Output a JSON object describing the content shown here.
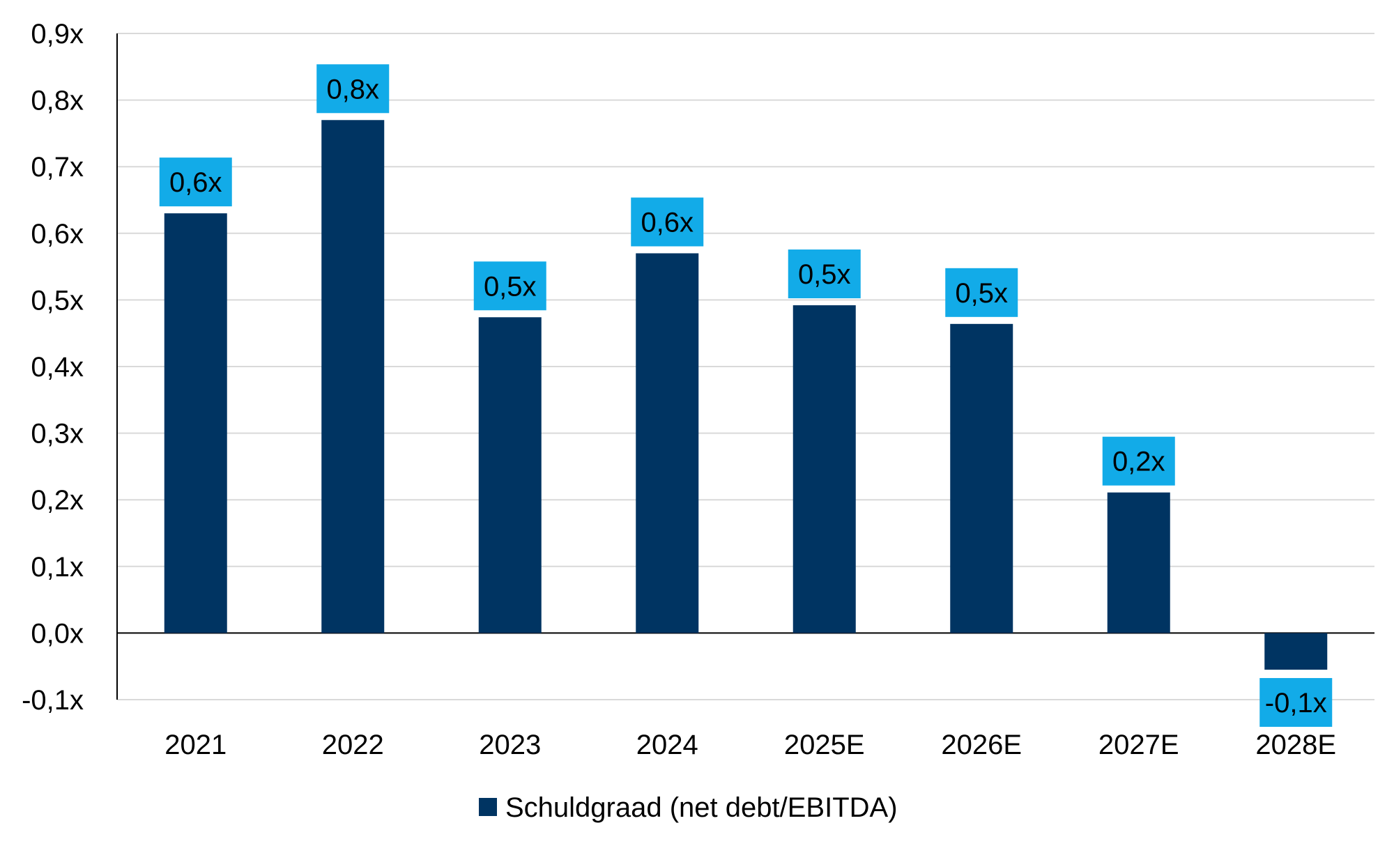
{
  "chart_data": {
    "type": "bar",
    "categories": [
      "2021",
      "2022",
      "2023",
      "2024",
      "2025E",
      "2026E",
      "2027E",
      "2028E"
    ],
    "series": [
      {
        "name": "Schuldgraad (net debt/EBITDA)",
        "values": [
          0.63,
          0.77,
          0.474,
          0.57,
          0.492,
          0.464,
          0.211,
          -0.055
        ],
        "data_labels": [
          "0,6x",
          "0,8x",
          "0,5x",
          "0,6x",
          "0,5x",
          "0,5x",
          "0,2x",
          "-0,1x"
        ]
      }
    ],
    "ylim": [
      -0.1,
      0.9
    ],
    "yticks": [
      -0.1,
      0.0,
      0.1,
      0.2,
      0.3,
      0.4,
      0.5,
      0.6,
      0.7,
      0.8,
      0.9
    ],
    "ytick_labels": [
      "-0,1x",
      "0,0x",
      "0,1x",
      "0,2x",
      "0,3x",
      "0,4x",
      "0,5x",
      "0,6x",
      "0,7x",
      "0,8x",
      "0,9x"
    ],
    "grid": true,
    "legend_position": "bottom",
    "title": "",
    "xlabel": "",
    "ylabel": "",
    "colors": {
      "bar": "#003462",
      "label_box": "#12abe8",
      "grid": "#d9d9d9",
      "axis": "#000000"
    }
  }
}
